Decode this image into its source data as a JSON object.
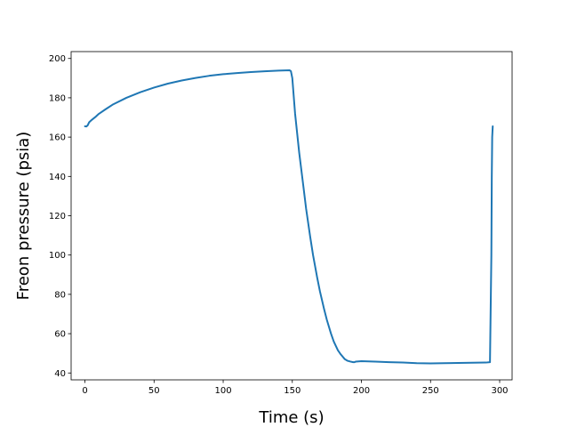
{
  "chart_data": {
    "type": "line",
    "title": "",
    "xlabel": "Time (s)",
    "ylabel": "Freon pressure (psia)",
    "xlim": [
      -10,
      309
    ],
    "ylim": [
      36.5,
      203.5
    ],
    "xticks": [
      0,
      50,
      100,
      150,
      200,
      250,
      300
    ],
    "yticks": [
      40,
      60,
      80,
      100,
      120,
      140,
      160,
      180,
      200
    ],
    "xtick_labels": [
      "0",
      "50",
      "100",
      "150",
      "200",
      "250",
      "300"
    ],
    "ytick_labels": [
      "40",
      "60",
      "80",
      "100",
      "120",
      "140",
      "160",
      "180",
      "200"
    ],
    "grid": false,
    "legend": "none",
    "series": [
      {
        "color": "#1f77b4",
        "x": [
          0,
          1,
          2,
          3,
          5,
          8,
          10,
          15,
          20,
          30,
          40,
          50,
          60,
          70,
          80,
          90,
          100,
          110,
          120,
          130,
          140,
          148,
          149,
          150,
          152,
          155,
          158,
          160,
          163,
          165,
          168,
          170,
          173,
          175,
          178,
          180,
          183,
          185,
          188,
          190,
          192,
          194,
          195,
          196,
          200,
          210,
          220,
          230,
          240,
          250,
          260,
          270,
          280,
          290,
          293,
          294,
          294.3,
          294.6,
          295
        ],
        "y": [
          165.5,
          165.4,
          166.0,
          167.5,
          168.8,
          170.5,
          171.8,
          174.2,
          176.5,
          180.0,
          182.8,
          185.2,
          187.2,
          188.8,
          190.1,
          191.2,
          192.0,
          192.6,
          193.1,
          193.5,
          193.8,
          194.0,
          193.5,
          190.0,
          172.0,
          152.0,
          135.0,
          123.5,
          109.0,
          100.0,
          88.5,
          81.5,
          72.5,
          67.0,
          60.0,
          56.0,
          51.5,
          49.5,
          47.0,
          46.2,
          45.8,
          45.5,
          45.5,
          45.8,
          46.0,
          45.8,
          45.5,
          45.3,
          45.0,
          44.9,
          45.0,
          45.1,
          45.2,
          45.3,
          45.5,
          100.0,
          139.0,
          160.0,
          165.5
        ]
      }
    ]
  }
}
